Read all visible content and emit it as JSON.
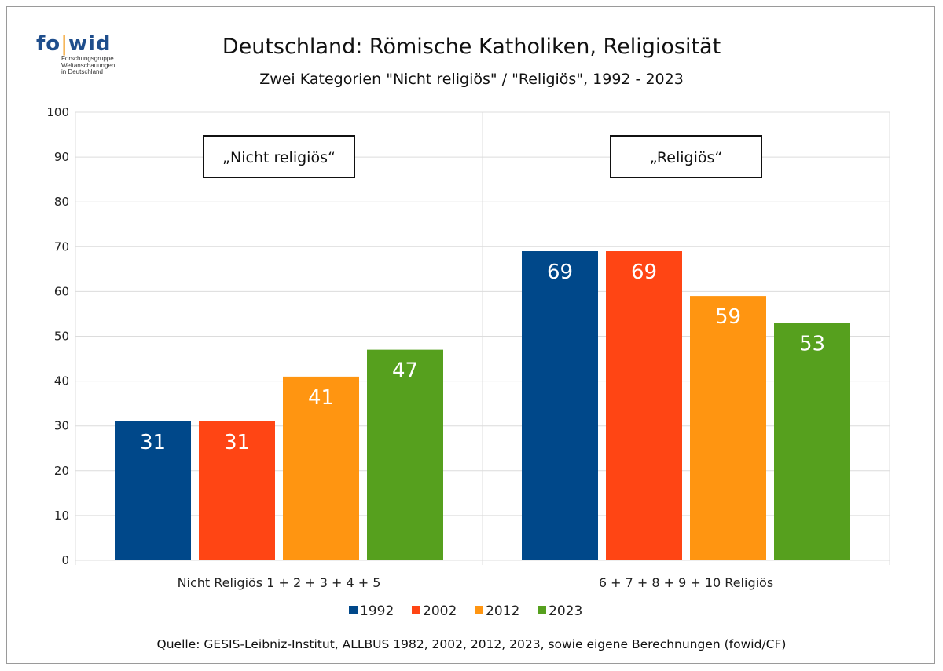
{
  "logo": {
    "mark_fo": "fo",
    "mark_wid": "wid",
    "subtitle_lines": [
      "Forschungsgruppe",
      "Weltanschauungen",
      "in Deutschland"
    ]
  },
  "title": "Deutschland: Römische Katholiken, Religiosität",
  "subtitle": "Zwei Kategorien \"Nicht religiös\" / \"Religiös\", 1992 - 2023",
  "source": "Quelle: GESIS-Leibniz-Institut, ALLBUS 1982, 2002, 2012, 2023, sowie eigene Berechnungen (fowid/CF)",
  "chart_data": {
    "type": "bar",
    "categories": [
      "Nicht Religiös 1 + 2 + 3 + 4 + 5",
      "6 + 7 + 8 + 9 + 10 Religiös"
    ],
    "category_boxes": [
      "„Nicht religiös“",
      "„Religiös“"
    ],
    "series": [
      {
        "name": "1992",
        "color": "#00488a",
        "values": [
          31,
          69
        ]
      },
      {
        "name": "2002",
        "color": "#ff4514",
        "values": [
          31,
          69
        ]
      },
      {
        "name": "2012",
        "color": "#ff9511",
        "values": [
          41,
          59
        ]
      },
      {
        "name": "2023",
        "color": "#56a01e",
        "values": [
          47,
          53
        ]
      }
    ],
    "ylim": [
      0,
      100
    ],
    "yticks": [
      0,
      10,
      20,
      30,
      40,
      50,
      60,
      70,
      80,
      90,
      100
    ],
    "grid": true,
    "legend_position": "bottom",
    "data_labels": true
  }
}
